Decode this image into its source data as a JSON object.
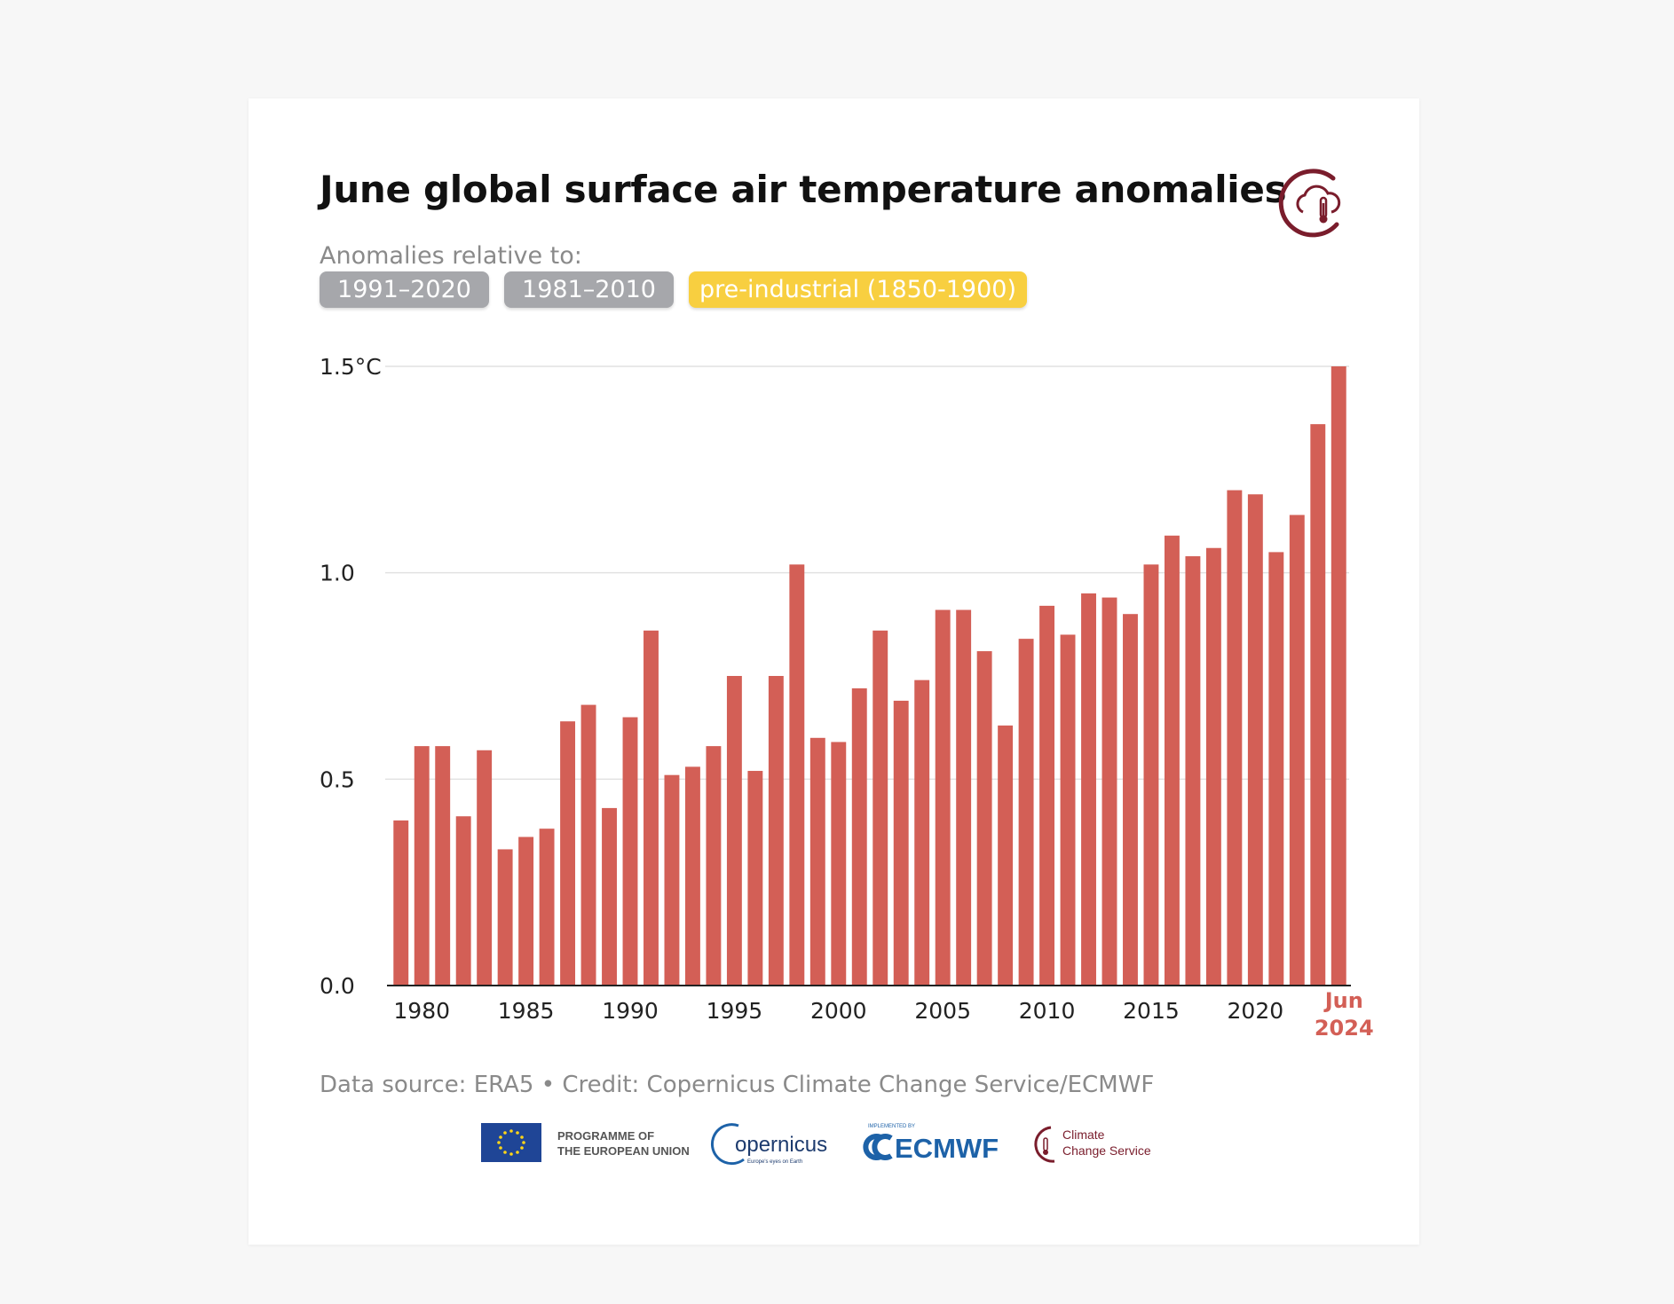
{
  "title": "June global surface air temperature anomalies",
  "subtitle": "Anomalies relative to:",
  "baselines": [
    {
      "label": "1991–2020",
      "active": false
    },
    {
      "label": "1981–2010",
      "active": false
    },
    {
      "label": "pre-industrial (1850-1900)",
      "active": true
    }
  ],
  "colors": {
    "bar": "#d35f56",
    "highlight_label": "#d35f56",
    "active_button": "#f8cf40",
    "inactive_button": "#a6a7ab",
    "brand": "#7a1d2c",
    "eu_blue": "#1f4596",
    "ecmwf_blue": "#1d62a8"
  },
  "chart_data": {
    "type": "bar",
    "title": "June global surface air temperature anomalies",
    "ylim": [
      0,
      1.5
    ],
    "yticks": [
      "0.0",
      "0.5",
      "1.0",
      "1.5°C"
    ],
    "xticks": [
      "1980",
      "1985",
      "1990",
      "1995",
      "2000",
      "2005",
      "2010",
      "2015",
      "2020"
    ],
    "last_label": [
      "Jun",
      "2024"
    ],
    "grid": true,
    "x": [
      1979,
      1980,
      1981,
      1982,
      1983,
      1984,
      1985,
      1986,
      1987,
      1988,
      1989,
      1990,
      1991,
      1992,
      1993,
      1994,
      1995,
      1996,
      1997,
      1998,
      1999,
      2000,
      2001,
      2002,
      2003,
      2004,
      2005,
      2006,
      2007,
      2008,
      2009,
      2010,
      2011,
      2012,
      2013,
      2014,
      2015,
      2016,
      2017,
      2018,
      2019,
      2020,
      2021,
      2022,
      2023,
      2024
    ],
    "values": [
      0.4,
      0.58,
      0.58,
      0.41,
      0.57,
      0.33,
      0.36,
      0.38,
      0.64,
      0.68,
      0.43,
      0.65,
      0.86,
      0.51,
      0.53,
      0.58,
      0.75,
      0.52,
      0.75,
      1.02,
      0.6,
      0.59,
      0.72,
      0.86,
      0.69,
      0.74,
      0.91,
      0.91,
      0.81,
      0.63,
      0.84,
      0.92,
      0.85,
      0.95,
      0.94,
      0.9,
      1.02,
      1.09,
      1.04,
      1.06,
      1.2,
      1.19,
      1.05,
      1.14,
      1.36,
      1.5
    ]
  },
  "footer": {
    "source": "Data source: ERA5 • Credit: Copernicus Climate Change Service/ECMWF",
    "eu_line1": "PROGRAMME OF",
    "eu_line2": "THE EUROPEAN UNION",
    "copernicus": "opernicus",
    "copernicus_tagline": "Europe's eyes on Earth",
    "ecmwf_tagline": "IMPLEMENTED BY",
    "ecmwf": "ECMWF",
    "c3s_line1": "Climate",
    "c3s_line2": "Change Service"
  }
}
